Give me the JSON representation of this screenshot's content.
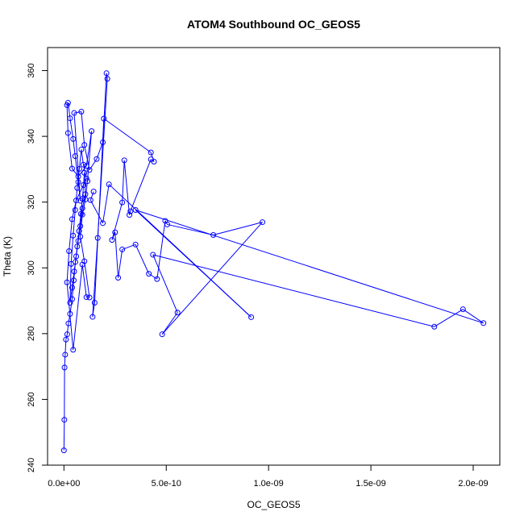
{
  "chart_data": {
    "type": "line",
    "title": "ATOM4 Southbound OC_GEOS5",
    "xlabel": "OC_GEOS5",
    "ylabel": "Theta (K)",
    "xlim": [
      -8e-11,
      2.13e-09
    ],
    "ylim": [
      240,
      367
    ],
    "x_ticks": [
      0,
      5e-10,
      1e-09,
      1.5e-09,
      2e-09
    ],
    "x_tick_labels": [
      "0.0e+00",
      "5.0e-10",
      "1.0e-09",
      "1.5e-09",
      "2.0e-09"
    ],
    "y_ticks": [
      240,
      260,
      280,
      300,
      320,
      340,
      360
    ],
    "y_tick_labels": [
      "240",
      "260",
      "280",
      "300",
      "320",
      "340",
      "360"
    ],
    "grid": false,
    "legend": "none",
    "series_color": "#0000ff",
    "marker": "open-circle",
    "points": [
      [
        0.0,
        244.5
      ],
      [
        2e-12,
        253.8
      ],
      [
        3e-12,
        269.7
      ],
      [
        6e-12,
        273.6
      ],
      [
        1e-11,
        278.2
      ],
      [
        1.6e-11,
        279.8
      ],
      [
        2.2e-11,
        283.1
      ],
      [
        3e-11,
        286.0
      ],
      [
        4e-11,
        290.5
      ],
      [
        4.8e-11,
        296.2
      ],
      [
        5.6e-11,
        301.8
      ],
      [
        6.5e-11,
        306.5
      ],
      [
        7.4e-11,
        311.2
      ],
      [
        8.3e-11,
        316.4
      ],
      [
        9e-11,
        321.0
      ],
      [
        9.6e-11,
        325.2
      ],
      [
        1e-10,
        328.9
      ],
      [
        1.05e-10,
        322.4
      ],
      [
        9e-11,
        318.1
      ],
      [
        8e-11,
        312.7
      ],
      [
        7e-11,
        308.2
      ],
      [
        6e-11,
        303.5
      ],
      [
        5e-11,
        298.9
      ],
      [
        4e-11,
        294.0
      ],
      [
        3e-11,
        289.4
      ],
      [
        3.5e-11,
        301.2
      ],
      [
        4.5e-11,
        309.8
      ],
      [
        5.5e-11,
        317.6
      ],
      [
        6.5e-11,
        324.3
      ],
      [
        7.5e-11,
        330.1
      ],
      [
        8.5e-11,
        336.0
      ],
      [
        9.5e-11,
        331.4
      ],
      [
        1.1e-10,
        327.2
      ],
      [
        6e-11,
        320.5
      ],
      [
        4e-11,
        314.8
      ],
      [
        2.5e-11,
        305.1
      ],
      [
        1.5e-11,
        295.6
      ],
      [
        4.5e-11,
        275.1
      ],
      [
        9e-11,
        301.0
      ],
      [
        1.1e-10,
        291.1
      ],
      [
        1.25e-10,
        291.0
      ],
      [
        1e-10,
        302.0
      ],
      [
        8e-11,
        309.5
      ],
      [
        9e-11,
        316.2
      ],
      [
        1.05e-10,
        320.8
      ],
      [
        1.15e-10,
        326.4
      ],
      [
        1.35e-10,
        341.6
      ],
      [
        1.1e-10,
        331.0
      ],
      [
        7e-11,
        327.8
      ],
      [
        4e-11,
        330.2
      ],
      [
        2e-11,
        341.0
      ],
      [
        1.5e-11,
        349.5
      ],
      [
        2e-11,
        350.2
      ],
      [
        3e-11,
        345.5
      ],
      [
        4.5e-11,
        339.2
      ],
      [
        5.5e-11,
        334.0
      ],
      [
        7e-11,
        326.1
      ],
      [
        8e-11,
        320.4
      ],
      [
        5e-11,
        347.1
      ],
      [
        8.5e-11,
        347.5
      ],
      [
        1e-10,
        337.4
      ],
      [
        1.25e-10,
        329.8
      ],
      [
        1.6e-10,
        333.1
      ],
      [
        1.9e-10,
        338.2
      ],
      [
        2.08e-10,
        359.2
      ],
      [
        2.12e-10,
        357.5
      ],
      [
        1.65e-10,
        309.1
      ],
      [
        1.4e-10,
        285.1
      ],
      [
        1.5e-10,
        289.4
      ],
      [
        1.95e-10,
        345.4
      ],
      [
        4.25e-10,
        335.1
      ],
      [
        4.4e-10,
        332.3
      ],
      [
        4.25e-10,
        333.0
      ],
      [
        3.25e-10,
        317.2
      ],
      [
        3.2e-10,
        316.1
      ],
      [
        2.95e-10,
        332.7
      ],
      [
        2.85e-10,
        319.9
      ],
      [
        2.35e-10,
        308.5
      ],
      [
        2.5e-10,
        310.8
      ],
      [
        2.65e-10,
        297.0
      ],
      [
        2.85e-10,
        305.6
      ],
      [
        3.5e-10,
        307.1
      ],
      [
        4.15e-10,
        298.2
      ],
      [
        4.55e-10,
        296.6
      ],
      [
        4.95e-10,
        314.3
      ],
      [
        5.05e-10,
        313.2
      ],
      [
        7.3e-10,
        310.0
      ],
      [
        9.7e-10,
        313.9
      ],
      [
        4.8e-10,
        279.8
      ],
      [
        5.55e-10,
        286.4
      ],
      [
        4.35e-10,
        304.0
      ],
      [
        1.81e-09,
        282.1
      ],
      [
        1.95e-09,
        287.4
      ],
      [
        2.05e-09,
        283.2
      ],
      [
        3.5e-10,
        317.6
      ],
      [
        9.15e-10,
        285.0
      ],
      [
        2.2e-10,
        325.4
      ],
      [
        1.9e-10,
        313.6
      ],
      [
        1.3e-10,
        320.6
      ],
      [
        1.45e-10,
        323.2
      ]
    ]
  }
}
